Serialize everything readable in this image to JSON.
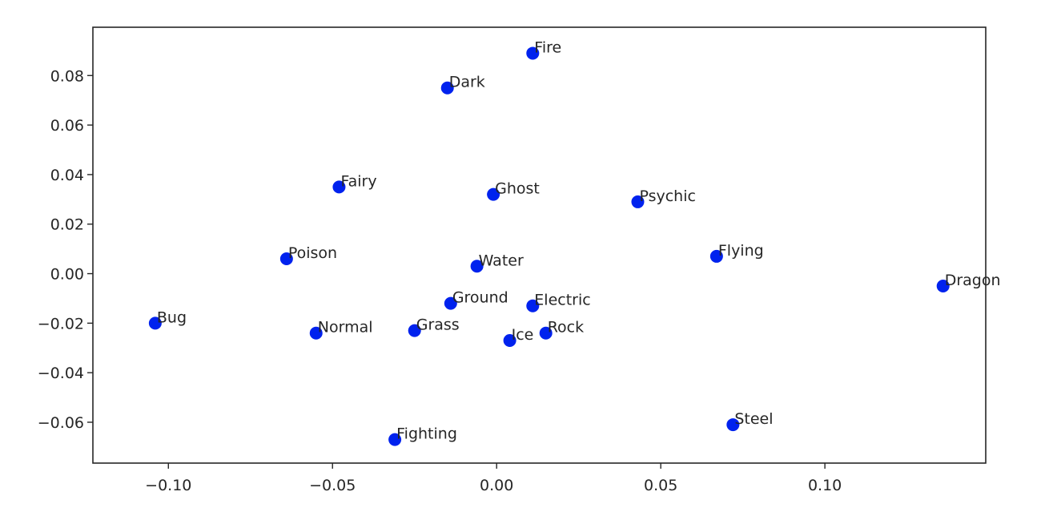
{
  "chart_data": {
    "type": "scatter",
    "title": "",
    "xlabel": "",
    "ylabel": "",
    "xlim": [
      -0.123,
      0.149
    ],
    "ylim": [
      -0.0765,
      0.0995
    ],
    "xticks": [
      -0.1,
      -0.05,
      0.0,
      0.05,
      0.1
    ],
    "xtick_labels": [
      "−0.10",
      "−0.05",
      "0.00",
      "0.05",
      "0.10"
    ],
    "yticks": [
      -0.06,
      -0.04,
      -0.02,
      0.0,
      0.02,
      0.04,
      0.06,
      0.08
    ],
    "ytick_labels": [
      "−0.06",
      "−0.04",
      "−0.02",
      "0.00",
      "0.02",
      "0.04",
      "0.06",
      "0.08"
    ],
    "grid": false,
    "point_color": "#0022ee",
    "points": [
      {
        "label": "Fire",
        "x": 0.011,
        "y": 0.089
      },
      {
        "label": "Dark",
        "x": -0.015,
        "y": 0.075
      },
      {
        "label": "Fairy",
        "x": -0.048,
        "y": 0.035
      },
      {
        "label": "Ghost",
        "x": -0.001,
        "y": 0.032
      },
      {
        "label": "Psychic",
        "x": 0.043,
        "y": 0.029
      },
      {
        "label": "Poison",
        "x": -0.064,
        "y": 0.006
      },
      {
        "label": "Water",
        "x": -0.006,
        "y": 0.003
      },
      {
        "label": "Flying",
        "x": 0.067,
        "y": 0.007
      },
      {
        "label": "Dragon",
        "x": 0.136,
        "y": -0.005
      },
      {
        "label": "Ground",
        "x": -0.014,
        "y": -0.012
      },
      {
        "label": "Electric",
        "x": 0.011,
        "y": -0.013
      },
      {
        "label": "Bug",
        "x": -0.104,
        "y": -0.02
      },
      {
        "label": "Normal",
        "x": -0.055,
        "y": -0.024
      },
      {
        "label": "Grass",
        "x": -0.025,
        "y": -0.023
      },
      {
        "label": "Ice",
        "x": 0.004,
        "y": -0.027
      },
      {
        "label": "Rock",
        "x": 0.015,
        "y": -0.024
      },
      {
        "label": "Steel",
        "x": 0.072,
        "y": -0.061
      },
      {
        "label": "Fighting",
        "x": -0.031,
        "y": -0.067
      }
    ]
  }
}
